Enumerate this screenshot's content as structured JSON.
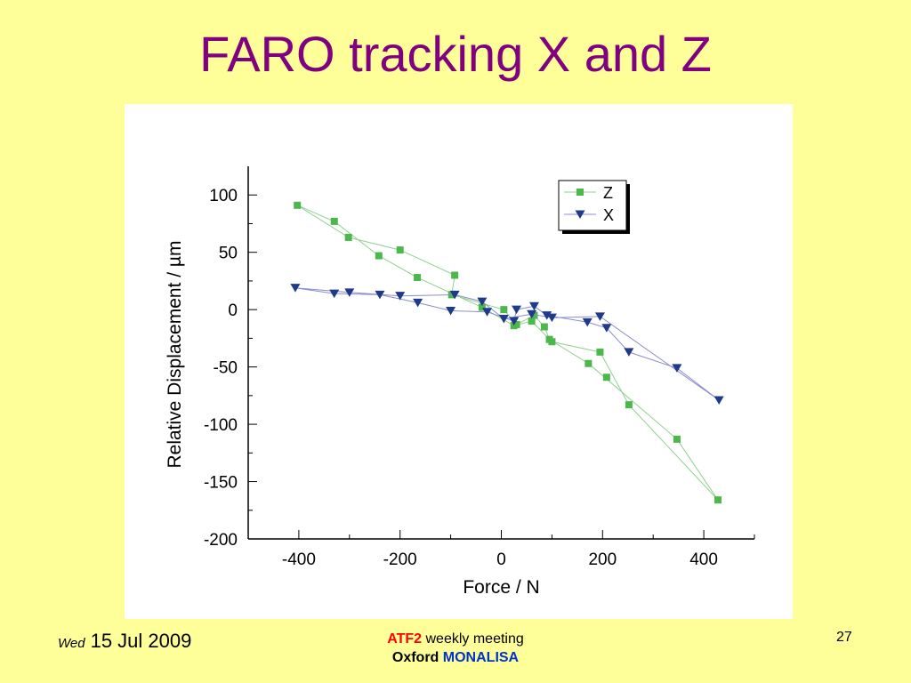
{
  "slide": {
    "title": "FARO tracking X and Z",
    "footer": {
      "day": "Wed",
      "date": "15 Jul 2009",
      "line1_a": "ATF2",
      "line1_b": "weekly meeting",
      "line2_a": "Oxford",
      "line2_b": "MONALISA",
      "page_number": "27"
    }
  },
  "chart_data": {
    "type": "line",
    "title": "",
    "xlabel": "Force / N",
    "ylabel": "Relative Displacement / µm",
    "xlim": [
      -500,
      500
    ],
    "ylim": [
      -200,
      125
    ],
    "xticks": [
      -400,
      -200,
      0,
      200,
      400
    ],
    "yticks": [
      100,
      50,
      0,
      -50,
      -100,
      -150,
      -200
    ],
    "grid": false,
    "legend_position": "top-right",
    "series": [
      {
        "name": "Z",
        "marker": "square",
        "color": "#4cb84c",
        "line_color": "#8fd08f",
        "points": [
          [
            -403,
            91
          ],
          [
            -330,
            77
          ],
          [
            -302,
            63
          ],
          [
            -242,
            47
          ],
          [
            -200,
            52
          ],
          [
            -166,
            28
          ],
          [
            -92,
            30
          ],
          [
            -98,
            13
          ],
          [
            -38,
            2
          ],
          [
            5,
            0
          ],
          [
            25,
            -14
          ],
          [
            30,
            -13
          ],
          [
            60,
            -10
          ],
          [
            65,
            -5
          ],
          [
            85,
            -15
          ],
          [
            95,
            -26
          ],
          [
            100,
            -28
          ],
          [
            172,
            -47
          ],
          [
            195,
            -37
          ],
          [
            208,
            -59
          ],
          [
            252,
            -83
          ],
          [
            347,
            -113
          ],
          [
            428,
            -166
          ]
        ],
        "path_order": [
          0,
          1,
          3,
          5,
          8,
          10,
          12,
          16,
          18,
          20,
          22,
          21,
          17,
          15,
          14,
          13,
          11,
          9,
          7,
          6,
          4,
          2,
          0
        ]
      },
      {
        "name": "X",
        "marker": "triangle-down",
        "color": "#1f3a8a",
        "line_color": "#8c8cd0",
        "points": [
          [
            -407,
            19
          ],
          [
            -330,
            14
          ],
          [
            -300,
            15
          ],
          [
            -240,
            13
          ],
          [
            -200,
            12
          ],
          [
            -165,
            6
          ],
          [
            -100,
            -1
          ],
          [
            -92,
            13
          ],
          [
            -38,
            7
          ],
          [
            -28,
            -2
          ],
          [
            5,
            -8
          ],
          [
            25,
            -10
          ],
          [
            30,
            0
          ],
          [
            60,
            -4
          ],
          [
            65,
            3
          ],
          [
            90,
            -5
          ],
          [
            100,
            -7
          ],
          [
            170,
            -11
          ],
          [
            195,
            -6
          ],
          [
            208,
            -16
          ],
          [
            252,
            -37
          ],
          [
            347,
            -51
          ],
          [
            430,
            -79
          ]
        ],
        "path_order": [
          0,
          2,
          4,
          7,
          8,
          10,
          13,
          16,
          18,
          22,
          21,
          20,
          19,
          17,
          15,
          14,
          12,
          11,
          9,
          6,
          5,
          3,
          1,
          0
        ]
      }
    ]
  }
}
